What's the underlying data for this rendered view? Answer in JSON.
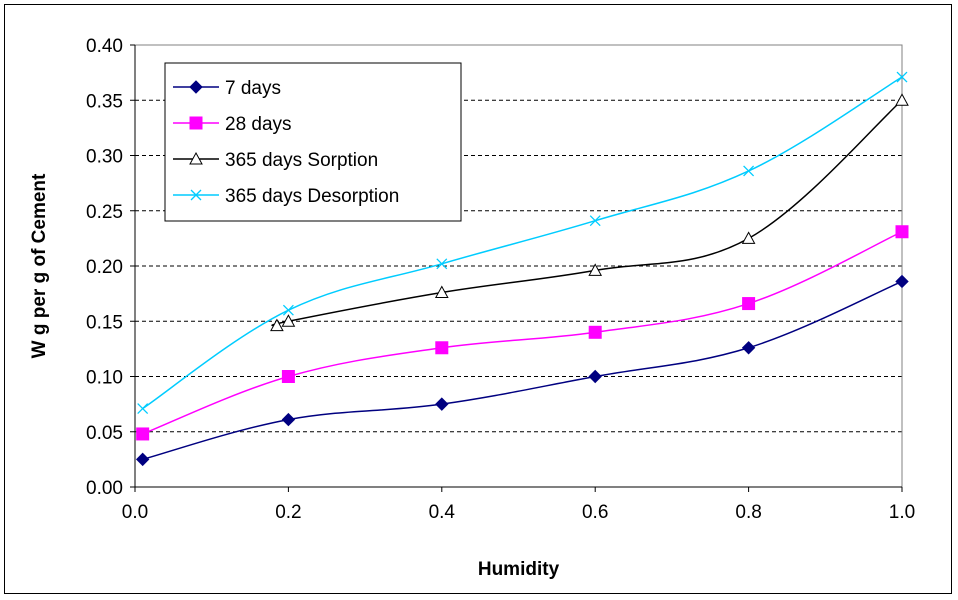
{
  "chart_data": {
    "type": "line",
    "xlabel": "Humidity",
    "ylabel": "W g per g of Cement",
    "xlim": [
      0.0,
      1.0
    ],
    "ylim": [
      0.0,
      0.4
    ],
    "x_ticks": [
      "0.0",
      "0.2",
      "0.4",
      "0.6",
      "0.8",
      "1.0"
    ],
    "y_ticks": [
      "0.00",
      "0.05",
      "0.10",
      "0.15",
      "0.20",
      "0.25",
      "0.30",
      "0.35",
      "0.40"
    ],
    "grid": "horizontal dashed",
    "legend_position": "top-left",
    "series": [
      {
        "name": "7 days",
        "color": "#000080",
        "marker": "diamond",
        "points": [
          [
            0.01,
            0.025
          ],
          [
            0.2,
            0.061
          ],
          [
            0.4,
            0.075
          ],
          [
            0.6,
            0.1
          ],
          [
            0.8,
            0.126
          ],
          [
            1.0,
            0.186
          ]
        ]
      },
      {
        "name": "28 days",
        "color": "#FF00FF",
        "marker": "square",
        "points": [
          [
            0.01,
            0.048
          ],
          [
            0.2,
            0.1
          ],
          [
            0.4,
            0.126
          ],
          [
            0.6,
            0.14
          ],
          [
            0.8,
            0.166
          ],
          [
            1.0,
            0.231
          ]
        ]
      },
      {
        "name": "365 days Sorption",
        "color": "#000000",
        "marker": "triangle",
        "points": [
          [
            0.185,
            0.146
          ],
          [
            0.2,
            0.15
          ],
          [
            0.4,
            0.176
          ],
          [
            0.6,
            0.196
          ],
          [
            0.8,
            0.225
          ],
          [
            1.0,
            0.35
          ]
        ]
      },
      {
        "name": "365 days Desorption",
        "color": "#00CCFF",
        "marker": "x",
        "points": [
          [
            0.01,
            0.071
          ],
          [
            0.2,
            0.16
          ],
          [
            0.4,
            0.202
          ],
          [
            0.6,
            0.241
          ],
          [
            0.8,
            0.286
          ],
          [
            1.0,
            0.371
          ]
        ]
      }
    ]
  }
}
